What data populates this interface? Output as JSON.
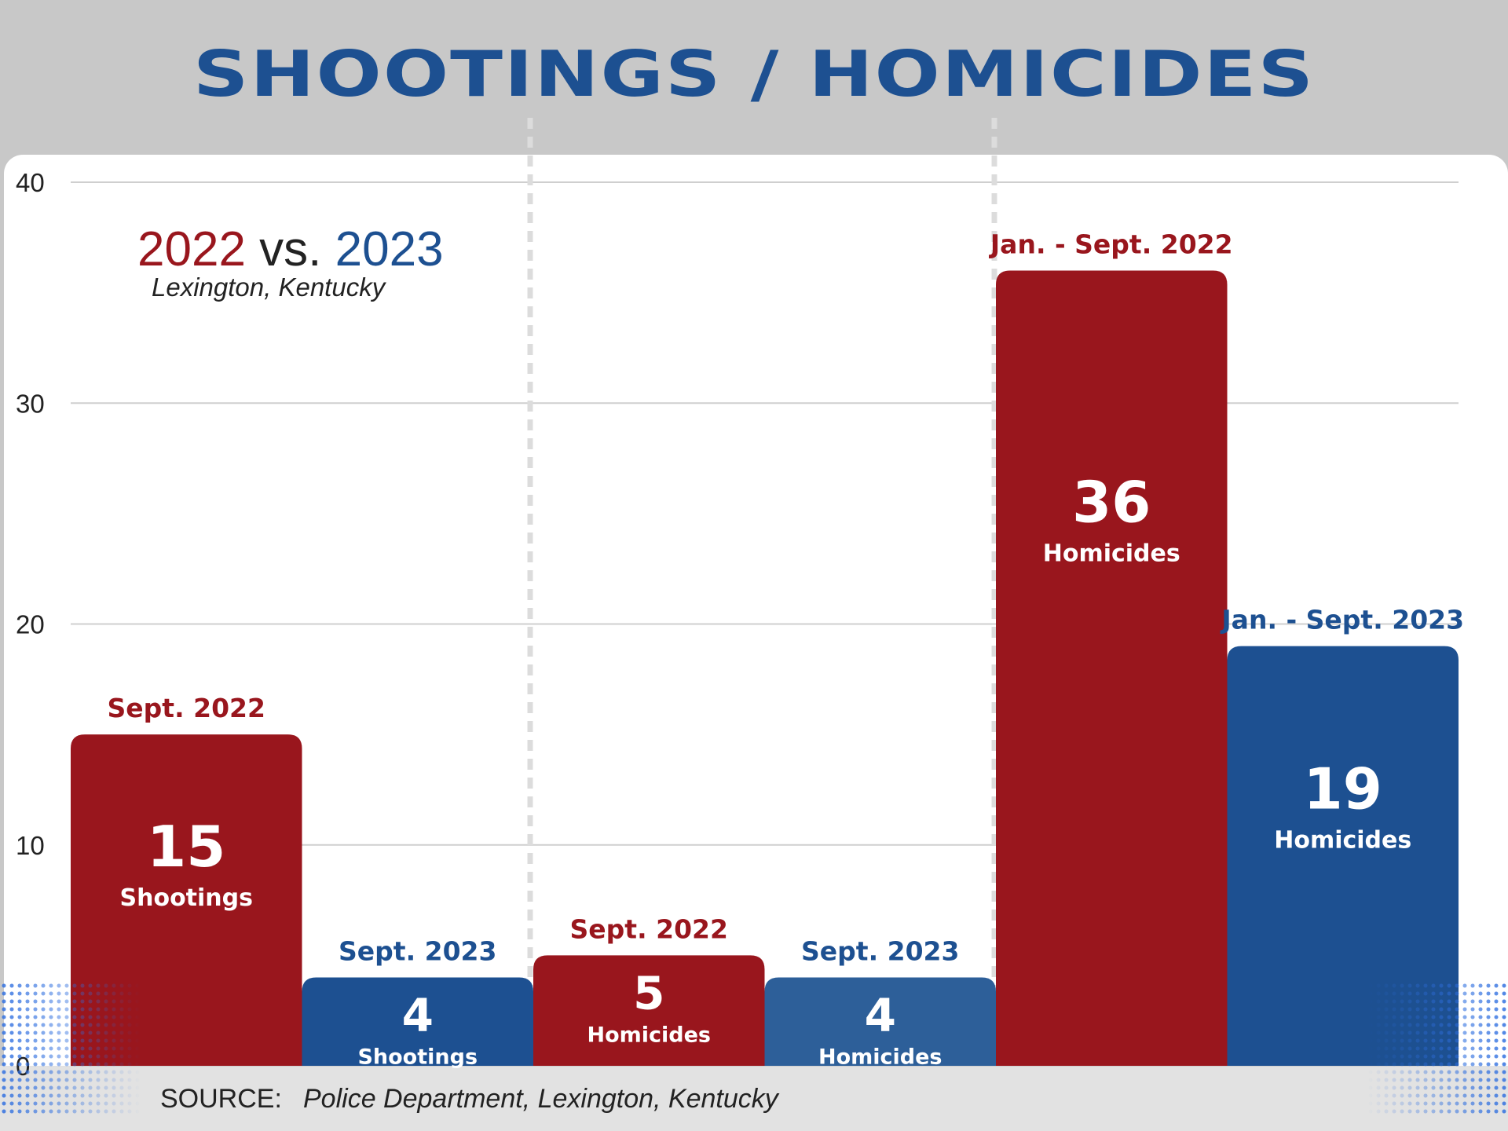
{
  "title": "SHOOTINGS / HOMICIDES",
  "legend": {
    "year_a": "2022",
    "vs": "vs.",
    "year_b": "2023",
    "place": "Lexington, Kentucky"
  },
  "source": {
    "label": "SOURCE:",
    "text": "Police Department, Lexington, Kentucky"
  },
  "colors": {
    "red": "#99161d",
    "blue": "#1d5091",
    "blue_light": "#2d5f99",
    "title": "#1d5091"
  },
  "chart_data": {
    "type": "bar",
    "title": "SHOOTINGS / HOMICIDES",
    "xlabel": "",
    "ylabel": "",
    "ylim": [
      0,
      40
    ],
    "yticks": [
      0,
      10,
      20,
      30,
      40
    ],
    "grid": true,
    "bars": [
      {
        "period": "Sept. 2022",
        "value": 15,
        "value_label": "15",
        "category": "Shootings",
        "year": "2022",
        "color": "#99161d"
      },
      {
        "period": "Sept.  2023",
        "value": 4,
        "value_label": "4",
        "category": "Shootings",
        "year": "2023",
        "color": "#1d5091"
      },
      {
        "period": "Sept. 2022",
        "value": 5,
        "value_label": "5",
        "category": "Homicides",
        "year": "2022",
        "color": "#99161d"
      },
      {
        "period": "Sept. 2023",
        "value": 4,
        "value_label": "4",
        "category": "Homicides",
        "year": "2023",
        "color": "#2d5f99"
      },
      {
        "period": "Jan. - Sept. 2022",
        "value": 36,
        "value_label": "36",
        "category": "Homicides",
        "year": "2022",
        "color": "#99161d"
      },
      {
        "period": "Jan. - Sept. 2023",
        "value": 19,
        "value_label": "19",
        "category": "Homicides",
        "year": "2023",
        "color": "#1d5091"
      }
    ]
  }
}
